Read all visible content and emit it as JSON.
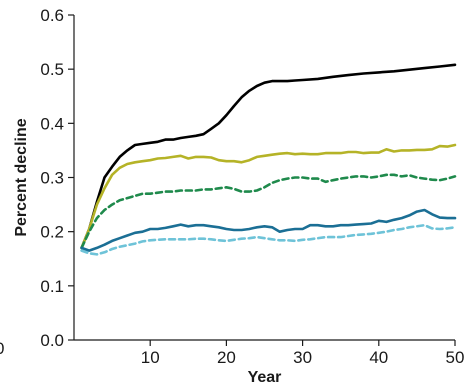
{
  "chart_data": {
    "type": "line",
    "title": "",
    "xlabel": "Year",
    "ylabel": "Percent decline",
    "xlim": [
      0,
      50
    ],
    "ylim": [
      0,
      0.6
    ],
    "xticks": [
      10,
      20,
      30,
      40,
      50
    ],
    "xtick_labels": [
      "10",
      "20",
      "30",
      "40",
      "50"
    ],
    "yticks": [
      0,
      0.1,
      0.2,
      0.3,
      0.4,
      0.5,
      0.6
    ],
    "ytick_labels": [
      "0.0",
      "0.1",
      "0.2",
      "0.3",
      "0.4",
      "0.5",
      "0.6"
    ],
    "grid": false,
    "legend": "none",
    "stray_label": "0",
    "series": [
      {
        "color": "#000000",
        "dash": "solid",
        "x": [
          1,
          2,
          3,
          4,
          5,
          6,
          7,
          8,
          9,
          10,
          11,
          12,
          13,
          14,
          15,
          16,
          17,
          18,
          19,
          20,
          21,
          22,
          23,
          24,
          25,
          26,
          27,
          28,
          29,
          30,
          32,
          34,
          36,
          38,
          40,
          42,
          44,
          46,
          48,
          50
        ],
        "values": [
          0.17,
          0.205,
          0.255,
          0.3,
          0.32,
          0.338,
          0.35,
          0.36,
          0.362,
          0.364,
          0.366,
          0.37,
          0.37,
          0.373,
          0.375,
          0.377,
          0.38,
          0.39,
          0.4,
          0.415,
          0.432,
          0.448,
          0.46,
          0.469,
          0.475,
          0.478,
          0.478,
          0.478,
          0.479,
          0.48,
          0.482,
          0.486,
          0.489,
          0.492,
          0.494,
          0.496,
          0.499,
          0.502,
          0.505,
          0.508
        ]
      },
      {
        "color": "#b5b327",
        "dash": "solid",
        "x": [
          1,
          2,
          3,
          4,
          5,
          6,
          7,
          8,
          9,
          10,
          11,
          12,
          13,
          14,
          15,
          16,
          17,
          18,
          19,
          20,
          21,
          22,
          23,
          24,
          25,
          26,
          27,
          28,
          29,
          30,
          31,
          32,
          33,
          34,
          35,
          36,
          37,
          38,
          39,
          40,
          41,
          42,
          43,
          44,
          45,
          46,
          47,
          48,
          49,
          50
        ],
        "values": [
          0.17,
          0.205,
          0.25,
          0.28,
          0.305,
          0.318,
          0.325,
          0.328,
          0.33,
          0.332,
          0.335,
          0.336,
          0.338,
          0.34,
          0.335,
          0.338,
          0.338,
          0.337,
          0.332,
          0.33,
          0.33,
          0.328,
          0.332,
          0.338,
          0.34,
          0.342,
          0.344,
          0.345,
          0.343,
          0.344,
          0.343,
          0.343,
          0.345,
          0.345,
          0.345,
          0.347,
          0.347,
          0.345,
          0.346,
          0.346,
          0.352,
          0.348,
          0.35,
          0.35,
          0.351,
          0.351,
          0.352,
          0.358,
          0.357,
          0.36
        ]
      },
      {
        "color": "#1f8a4c",
        "dash": "dashed",
        "x": [
          1,
          2,
          3,
          4,
          5,
          6,
          7,
          8,
          9,
          10,
          11,
          12,
          13,
          14,
          15,
          16,
          17,
          18,
          19,
          20,
          21,
          22,
          23,
          24,
          25,
          26,
          27,
          28,
          29,
          30,
          31,
          32,
          33,
          34,
          35,
          36,
          37,
          38,
          39,
          40,
          41,
          42,
          43,
          44,
          45,
          46,
          47,
          48,
          49,
          50
        ],
        "values": [
          0.17,
          0.2,
          0.225,
          0.24,
          0.25,
          0.258,
          0.262,
          0.266,
          0.27,
          0.27,
          0.272,
          0.274,
          0.274,
          0.276,
          0.276,
          0.276,
          0.278,
          0.278,
          0.28,
          0.282,
          0.279,
          0.274,
          0.274,
          0.276,
          0.282,
          0.29,
          0.295,
          0.298,
          0.3,
          0.3,
          0.298,
          0.298,
          0.292,
          0.295,
          0.298,
          0.3,
          0.302,
          0.302,
          0.3,
          0.302,
          0.305,
          0.305,
          0.302,
          0.304,
          0.3,
          0.298,
          0.296,
          0.295,
          0.298,
          0.302
        ]
      },
      {
        "color": "#1b6f95",
        "dash": "solid",
        "x": [
          1,
          2,
          3,
          4,
          5,
          6,
          7,
          8,
          9,
          10,
          11,
          12,
          13,
          14,
          15,
          16,
          17,
          18,
          19,
          20,
          21,
          22,
          23,
          24,
          25,
          26,
          27,
          28,
          29,
          30,
          31,
          32,
          33,
          34,
          35,
          36,
          37,
          38,
          39,
          40,
          41,
          42,
          43,
          44,
          45,
          46,
          47,
          48,
          49,
          50
        ],
        "values": [
          0.17,
          0.165,
          0.17,
          0.176,
          0.183,
          0.188,
          0.193,
          0.198,
          0.2,
          0.205,
          0.205,
          0.207,
          0.21,
          0.213,
          0.21,
          0.212,
          0.212,
          0.21,
          0.208,
          0.205,
          0.203,
          0.203,
          0.205,
          0.208,
          0.21,
          0.208,
          0.2,
          0.203,
          0.205,
          0.205,
          0.212,
          0.212,
          0.21,
          0.21,
          0.212,
          0.212,
          0.213,
          0.214,
          0.215,
          0.22,
          0.218,
          0.222,
          0.225,
          0.23,
          0.237,
          0.24,
          0.232,
          0.226,
          0.225,
          0.225
        ]
      },
      {
        "color": "#6ec3d8",
        "dash": "dashed",
        "x": [
          1,
          2,
          3,
          4,
          5,
          6,
          7,
          8,
          9,
          10,
          11,
          12,
          13,
          14,
          15,
          16,
          17,
          18,
          19,
          20,
          21,
          22,
          23,
          24,
          25,
          26,
          27,
          28,
          29,
          30,
          31,
          32,
          33,
          34,
          35,
          36,
          37,
          38,
          39,
          40,
          41,
          42,
          43,
          44,
          45,
          46,
          47,
          48,
          49,
          50
        ],
        "values": [
          0.165,
          0.16,
          0.158,
          0.162,
          0.168,
          0.172,
          0.175,
          0.178,
          0.182,
          0.184,
          0.185,
          0.186,
          0.186,
          0.186,
          0.186,
          0.187,
          0.187,
          0.186,
          0.184,
          0.183,
          0.185,
          0.187,
          0.188,
          0.19,
          0.188,
          0.186,
          0.184,
          0.184,
          0.183,
          0.185,
          0.186,
          0.188,
          0.19,
          0.19,
          0.19,
          0.192,
          0.194,
          0.195,
          0.196,
          0.198,
          0.2,
          0.203,
          0.205,
          0.208,
          0.21,
          0.212,
          0.206,
          0.205,
          0.206,
          0.208
        ]
      }
    ]
  }
}
